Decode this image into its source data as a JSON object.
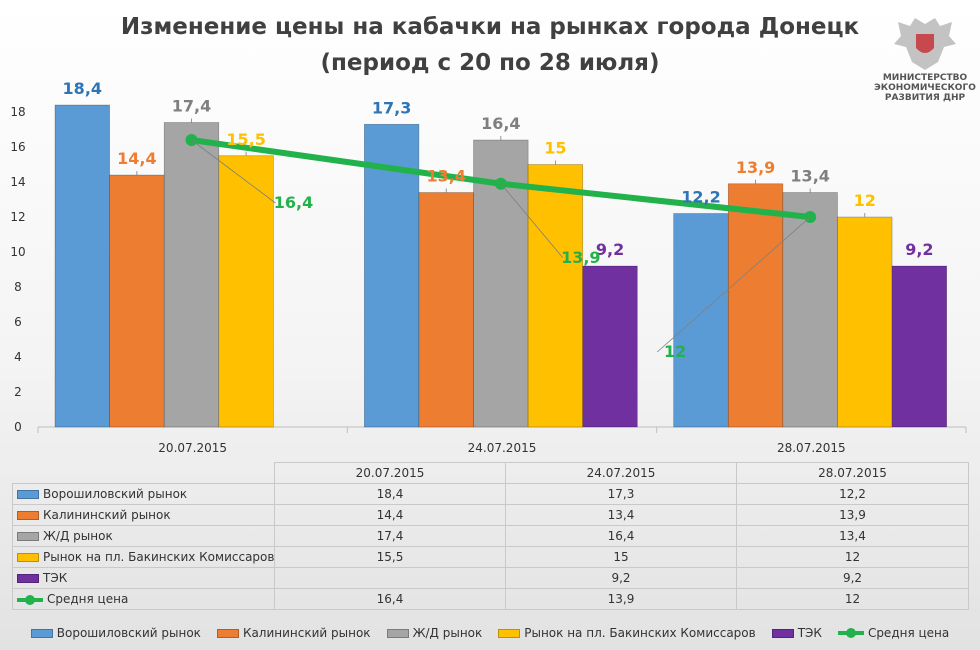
{
  "chart_data": {
    "type": "bar",
    "title": "Изменение цены на кабачки на рынках города Донецк",
    "subtitle": "(период с 20 по 28 июля)",
    "categories": [
      "20.07.2015",
      "24.07.2015",
      "28.07.2015"
    ],
    "series": [
      {
        "name": "Ворошиловский рынок",
        "color": "#5b9bd5",
        "values": [
          18.4,
          17.3,
          12.2
        ],
        "labels": [
          "18,4",
          "17,3",
          "12,2"
        ]
      },
      {
        "name": "Калининский рынок",
        "color": "#ed7d31",
        "values": [
          14.4,
          13.4,
          13.9
        ],
        "labels": [
          "14,4",
          "13,4",
          "13,9"
        ]
      },
      {
        "name": "Ж/Д рынок",
        "color": "#a5a5a5",
        "values": [
          17.4,
          16.4,
          13.4
        ],
        "labels": [
          "17,4",
          "16,4",
          "13,4"
        ]
      },
      {
        "name": "Рынок на пл. Бакинских Комиссаров",
        "color": "#ffc000",
        "values": [
          15.5,
          15,
          12
        ],
        "labels": [
          "15,5",
          "15",
          "12"
        ]
      },
      {
        "name": "ТЭК",
        "color": "#7030a0",
        "values": [
          null,
          9.2,
          9.2
        ],
        "labels": [
          "",
          "9,2",
          "9,2"
        ]
      }
    ],
    "line_series": {
      "name": "Средня цена",
      "color": "#22b24c",
      "values": [
        16.4,
        13.9,
        12
      ],
      "labels": [
        "16,4",
        "13,9",
        "12"
      ]
    },
    "label_colors": [
      "#2e75b6",
      "#ed7d31",
      "#7f7f7f",
      "#ffc000",
      "#7030a0"
    ],
    "y_ticks": [
      "0",
      "2",
      "4",
      "6",
      "8",
      "10",
      "12",
      "14",
      "16",
      "18"
    ],
    "ylim": [
      0,
      18
    ],
    "xlabel": "",
    "ylabel": "",
    "legend_position": "bottom",
    "table": true
  },
  "logo": {
    "text_lines": [
      "МИНИСТЕРСТВО",
      "ЭКОНОМИЧЕСКОГО",
      "РАЗВИТИЯ ДНР"
    ]
  },
  "table": {
    "header": [
      "20.07.2015",
      "24.07.2015",
      "28.07.2015"
    ],
    "rows": [
      {
        "label": "Ворошиловский рынок",
        "cells": [
          "18,4",
          "17,3",
          "12,2"
        ]
      },
      {
        "label": "Калининский рынок",
        "cells": [
          "14,4",
          "13,4",
          "13,9"
        ]
      },
      {
        "label": "Ж/Д рынок",
        "cells": [
          "17,4",
          "16,4",
          "13,4"
        ]
      },
      {
        "label": "Рынок на пл. Бакинских Комиссаров",
        "cells": [
          "15,5",
          "15",
          "12"
        ]
      },
      {
        "label": "ТЭК",
        "cells": [
          "",
          "9,2",
          "9,2"
        ]
      },
      {
        "label": "Средня цена",
        "cells": [
          "16,4",
          "13,9",
          "12"
        ]
      }
    ]
  },
  "legend": [
    "Ворошиловский рынок",
    "Калининский рынок",
    "Ж/Д рынок",
    "Рынок на пл. Бакинских Комиссаров",
    "ТЭК",
    "Средня цена"
  ]
}
